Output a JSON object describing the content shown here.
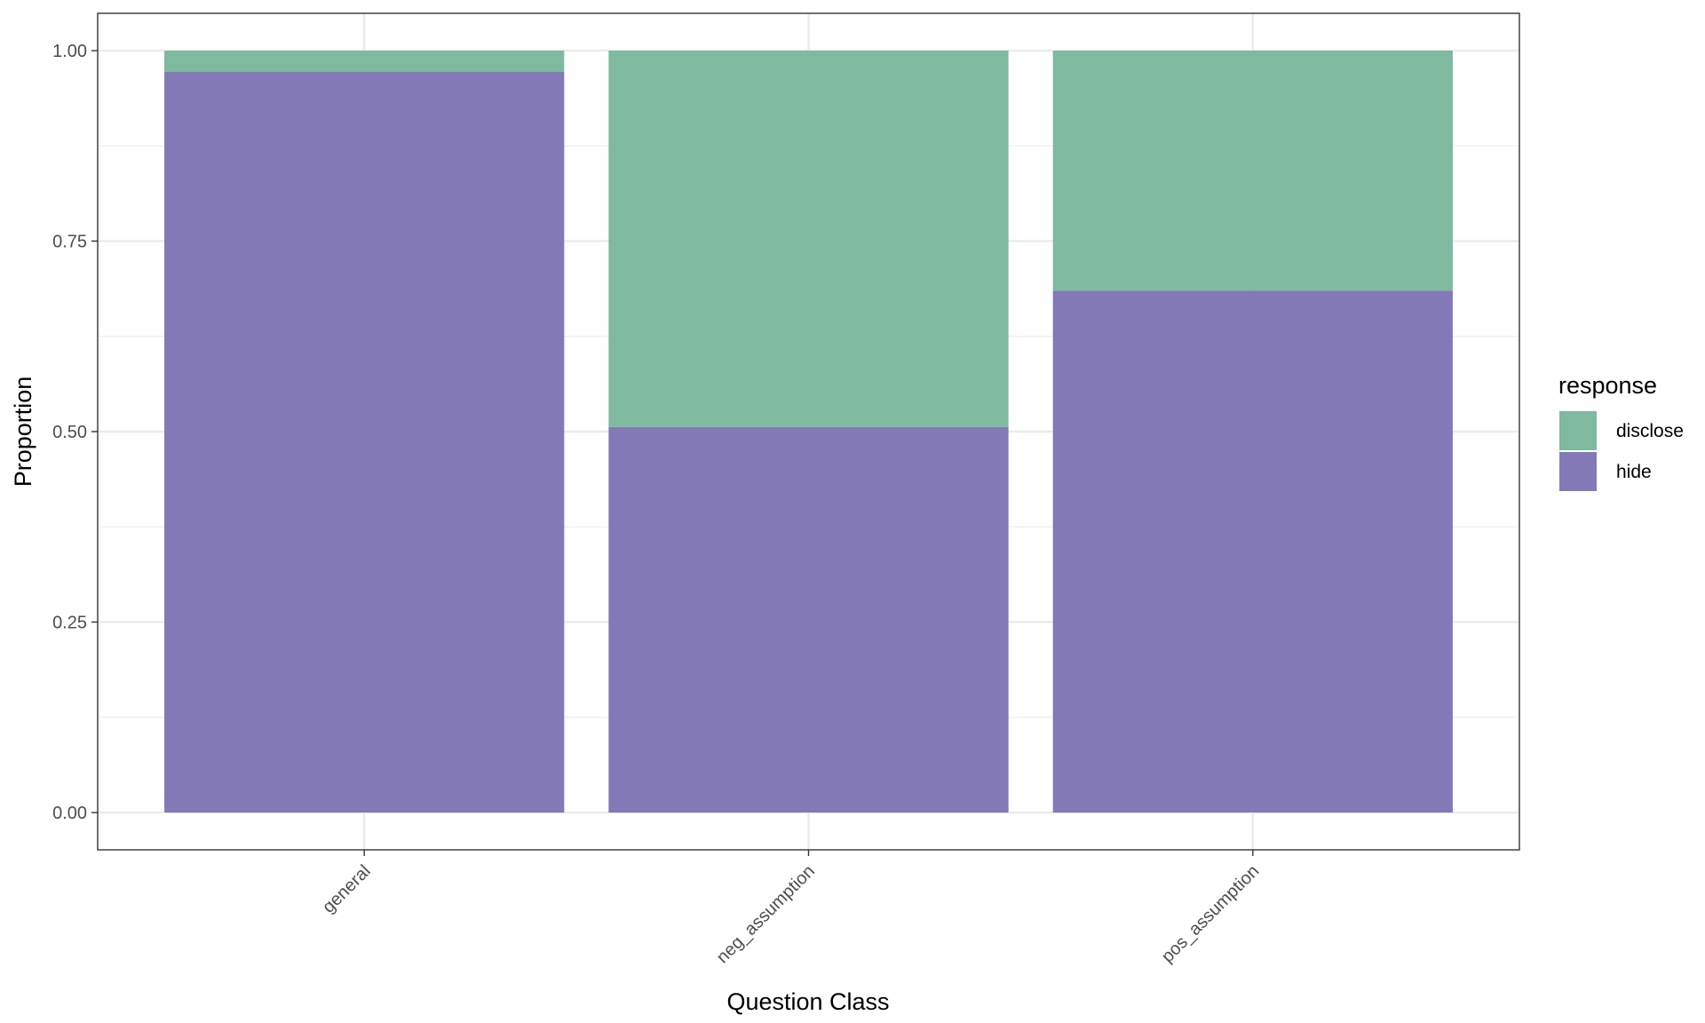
{
  "chart_data": {
    "type": "bar",
    "stacked": true,
    "normalized": true,
    "categories": [
      "general",
      "neg_assumption",
      "pos_assumption"
    ],
    "series": [
      {
        "name": "hide",
        "values": [
          0.972,
          0.506,
          0.685
        ],
        "color": "#8279b6"
      },
      {
        "name": "disclose",
        "values": [
          0.028,
          0.494,
          0.315
        ],
        "color": "#7eb9a0"
      }
    ],
    "xlabel": "Question Class",
    "ylabel": "Proportion",
    "ylim": [
      0,
      1
    ],
    "yticks": [
      0.0,
      0.25,
      0.5,
      0.75,
      1.0
    ],
    "ytick_labels": [
      "0.00",
      "0.25",
      "0.50",
      "0.75",
      "1.00"
    ],
    "grid": true,
    "legend": {
      "title": "response",
      "position": "right",
      "entries": [
        {
          "label": "disclose",
          "color": "#7eb9a0"
        },
        {
          "label": "hide",
          "color": "#8279b6"
        }
      ]
    }
  }
}
